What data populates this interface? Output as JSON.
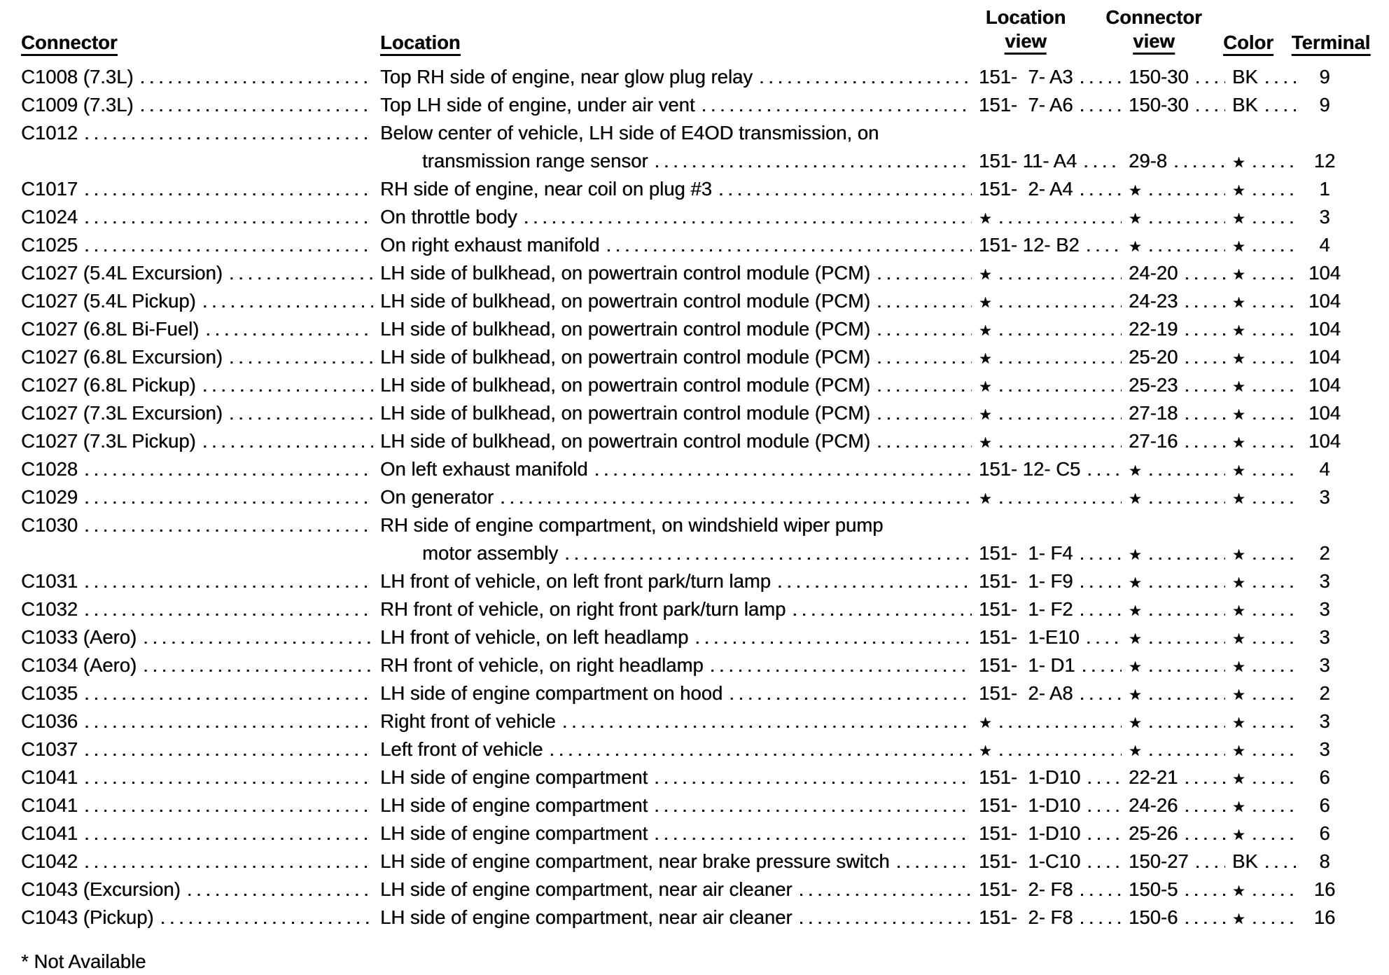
{
  "document": {
    "footnote": "* Not Available"
  },
  "table": {
    "star_symbol": "★",
    "headers": {
      "connector": "Connector",
      "location": "Location",
      "location_view_line1": "Location",
      "location_view_line2": "view",
      "connector_view_line1": "Connector",
      "connector_view_line2": "view",
      "color": "Color",
      "terminal": "Terminal"
    },
    "rows": [
      {
        "connector": "C1008 (7.3L)",
        "location": "Top RH side of engine, near glow plug relay",
        "location_view": "151-  7- A3",
        "connector_view": "150-30",
        "color": "BK",
        "terminal": "9"
      },
      {
        "connector": "C1009 (7.3L)",
        "location": "Top LH side of engine, under air vent",
        "location_view": "151-  7- A6",
        "connector_view": "150-30",
        "color": "BK",
        "terminal": "9"
      },
      {
        "connector": "C1012",
        "location": "Below center of vehicle, LH side of E4OD transmission, on",
        "location_line2": "transmission range sensor",
        "location_view": "151- 11- A4",
        "connector_view": "29-8",
        "color": "★",
        "terminal": "12"
      },
      {
        "connector": "C1017",
        "location": "RH side of engine, near coil on plug #3",
        "location_view": "151-  2- A4",
        "connector_view": "★",
        "color": "★",
        "terminal": "1"
      },
      {
        "connector": "C1024",
        "location": "On throttle body",
        "location_view": "★",
        "connector_view": "★",
        "color": "★",
        "terminal": "3"
      },
      {
        "connector": "C1025",
        "location": "On right exhaust manifold",
        "location_view": "151- 12- B2",
        "connector_view": "★",
        "color": "★",
        "terminal": "4"
      },
      {
        "connector": "C1027 (5.4L Excursion)",
        "location": "LH side of bulkhead, on powertrain control module (PCM)",
        "location_view": "★",
        "connector_view": "24-20",
        "color": "★",
        "terminal": "104"
      },
      {
        "connector": "C1027 (5.4L Pickup)",
        "location": "LH side of bulkhead, on powertrain control module (PCM)",
        "location_view": "★",
        "connector_view": "24-23",
        "color": "★",
        "terminal": "104"
      },
      {
        "connector": "C1027 (6.8L Bi-Fuel)",
        "location": "LH side of bulkhead, on powertrain control module (PCM)",
        "location_view": "★",
        "connector_view": "22-19",
        "color": "★",
        "terminal": "104"
      },
      {
        "connector": "C1027 (6.8L Excursion)",
        "location": "LH side of bulkhead, on powertrain control module (PCM)",
        "location_view": "★",
        "connector_view": "25-20",
        "color": "★",
        "terminal": "104"
      },
      {
        "connector": "C1027 (6.8L Pickup)",
        "location": "LH side of bulkhead, on powertrain control module (PCM)",
        "location_view": "★",
        "connector_view": "25-23",
        "color": "★",
        "terminal": "104"
      },
      {
        "connector": "C1027 (7.3L Excursion)",
        "location": "LH side of bulkhead, on powertrain control module (PCM)",
        "location_view": "★",
        "connector_view": "27-18",
        "color": "★",
        "terminal": "104"
      },
      {
        "connector": "C1027 (7.3L Pickup)",
        "location": "LH side of bulkhead, on powertrain control module (PCM)",
        "location_view": "★",
        "connector_view": "27-16",
        "color": "★",
        "terminal": "104"
      },
      {
        "connector": "C1028",
        "location": "On left exhaust manifold",
        "location_view": "151- 12- C5",
        "connector_view": "★",
        "color": "★",
        "terminal": "4"
      },
      {
        "connector": "C1029",
        "location": "On generator",
        "location_view": "★",
        "connector_view": "★",
        "color": "★",
        "terminal": "3"
      },
      {
        "connector": "C1030",
        "location": "RH side of engine compartment, on windshield wiper pump",
        "location_line2": "motor assembly",
        "location_view": "151-  1- F4",
        "connector_view": "★",
        "color": "★",
        "terminal": "2"
      },
      {
        "connector": "C1031",
        "location": "LH front of vehicle, on left front park/turn lamp",
        "location_view": "151-  1- F9",
        "connector_view": "★",
        "color": "★",
        "terminal": "3"
      },
      {
        "connector": "C1032",
        "location": "RH front of vehicle, on right front park/turn lamp",
        "location_view": "151-  1- F2",
        "connector_view": "★",
        "color": "★",
        "terminal": "3"
      },
      {
        "connector": "C1033 (Aero)",
        "location": "LH front of vehicle, on left headlamp",
        "location_view": "151-  1-E10",
        "connector_view": "★",
        "color": "★",
        "terminal": "3"
      },
      {
        "connector": "C1034 (Aero)",
        "location": "RH front of vehicle, on right headlamp",
        "location_view": "151-  1- D1",
        "connector_view": "★",
        "color": "★",
        "terminal": "3"
      },
      {
        "connector": "C1035",
        "location": "LH side of engine compartment on hood",
        "location_view": "151-  2- A8",
        "connector_view": "★",
        "color": "★",
        "terminal": "2"
      },
      {
        "connector": "C1036",
        "location": "Right front of vehicle",
        "location_view": "★",
        "connector_view": "★",
        "color": "★",
        "terminal": "3"
      },
      {
        "connector": "C1037",
        "location": "Left front of vehicle",
        "location_view": "★",
        "connector_view": "★",
        "color": "★",
        "terminal": "3"
      },
      {
        "connector": "C1041",
        "location": "LH side of engine compartment",
        "location_view": "151-  1-D10",
        "connector_view": "22-21",
        "color": "★",
        "terminal": "6"
      },
      {
        "connector": "C1041",
        "location": "LH side of engine compartment",
        "location_view": "151-  1-D10",
        "connector_view": "24-26",
        "color": "★",
        "terminal": "6"
      },
      {
        "connector": "C1041",
        "location": "LH side of engine compartment",
        "location_view": "151-  1-D10",
        "connector_view": "25-26",
        "color": "★",
        "terminal": "6"
      },
      {
        "connector": "C1042",
        "location": "LH side of engine compartment, near brake pressure switch",
        "location_view": "151-  1-C10",
        "connector_view": "150-27",
        "color": "BK",
        "terminal": "8"
      },
      {
        "connector": "C1043 (Excursion)",
        "location": "LH side of engine compartment, near air cleaner",
        "location_view": "151-  2- F8",
        "connector_view": "150-5",
        "color": "★",
        "terminal": "16"
      },
      {
        "connector": "C1043 (Pickup)",
        "location": "LH side of engine compartment, near air cleaner",
        "location_view": "151-  2- F8",
        "connector_view": "150-6",
        "color": "★",
        "terminal": "16"
      }
    ]
  }
}
